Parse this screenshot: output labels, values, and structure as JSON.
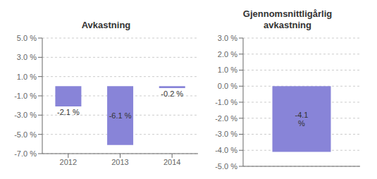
{
  "chart_data": [
    {
      "type": "bar",
      "title": "Avkastning",
      "categories": [
        "2012",
        "2013",
        "2014"
      ],
      "values": [
        -2.1,
        -6.1,
        -0.2
      ],
      "value_labels": [
        "-2.1 %",
        "-6.1 %",
        "-0.2 %"
      ],
      "data_labels": true,
      "color": "#8884d8",
      "ylim": [
        -7.0,
        5.0
      ],
      "yticks": [
        {
          "value": -7.0,
          "label": "-7.0 %"
        },
        {
          "value": -5.0,
          "label": "-5.0 %"
        },
        {
          "value": -3.0,
          "label": "-3.0 %"
        },
        {
          "value": -1.0,
          "label": "-1.0 %"
        },
        {
          "value": 1.0,
          "label": "1.0 %"
        },
        {
          "value": 3.0,
          "label": "3.0 %"
        },
        {
          "value": 5.0,
          "label": "5.0 %"
        }
      ],
      "grid": true
    },
    {
      "type": "bar",
      "title": "Gjennomsnittligårlig\navkastning",
      "categories": [
        null
      ],
      "values": [
        -4.1
      ],
      "value_labels": [
        "-4.1\n%"
      ],
      "data_labels": true,
      "color": "#8884d8",
      "ylim": [
        -5.0,
        3.0
      ],
      "yticks": [
        {
          "value": -5.0,
          "label": "-5.0 %"
        },
        {
          "value": -4.0,
          "label": "-4.0 %"
        },
        {
          "value": -3.0,
          "label": "-3.0 %"
        },
        {
          "value": -2.0,
          "label": "-2.0 %"
        },
        {
          "value": -1.0,
          "label": "-1.0 %"
        },
        {
          "value": 0.0,
          "label": "0.0 %"
        },
        {
          "value": 1.0,
          "label": "1.0 %"
        },
        {
          "value": 2.0,
          "label": "2.0 %"
        },
        {
          "value": 3.0,
          "label": "3.0 %"
        }
      ],
      "grid": true,
      "tick_labels": "y"
    }
  ]
}
